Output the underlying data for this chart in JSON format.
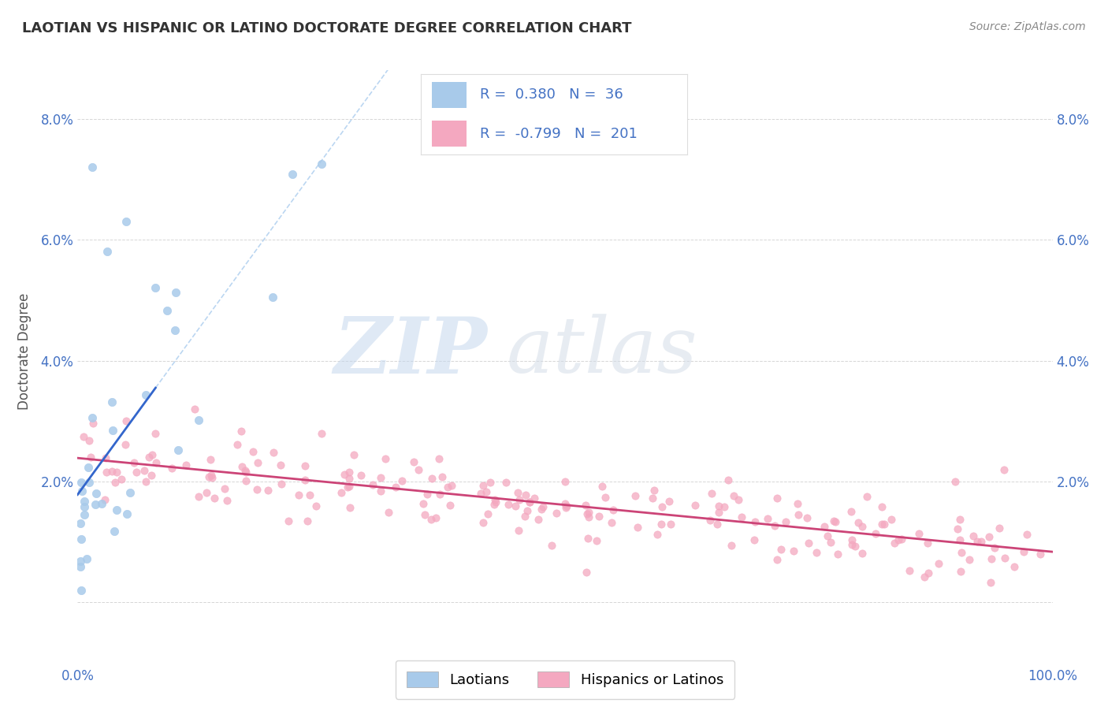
{
  "title": "LAOTIAN VS HISPANIC OR LATINO DOCTORATE DEGREE CORRELATION CHART",
  "source": "Source: ZipAtlas.com",
  "ylabel": "Doctorate Degree",
  "y_ticks": [
    0.0,
    0.02,
    0.04,
    0.06,
    0.08
  ],
  "y_tick_labels": [
    "",
    "2.0%",
    "4.0%",
    "6.0%",
    "8.0%"
  ],
  "x_lim": [
    0,
    100
  ],
  "y_lim": [
    -0.005,
    0.088
  ],
  "blue_R": 0.38,
  "blue_N": 36,
  "pink_R": -0.799,
  "pink_N": 201,
  "blue_color": "#A8CAEA",
  "pink_color": "#F4A8C0",
  "blue_line_color": "#3366CC",
  "pink_line_color": "#CC4477",
  "diag_line_color": "#AACCEE",
  "background_color": "#FFFFFF",
  "grid_color": "#CCCCCC",
  "title_color": "#333333",
  "legend_text_color": "#4472C4",
  "watermark_color": "#D8E8F8",
  "zip_color": "#C0D0E8",
  "atlas_color": "#D0D8E8"
}
